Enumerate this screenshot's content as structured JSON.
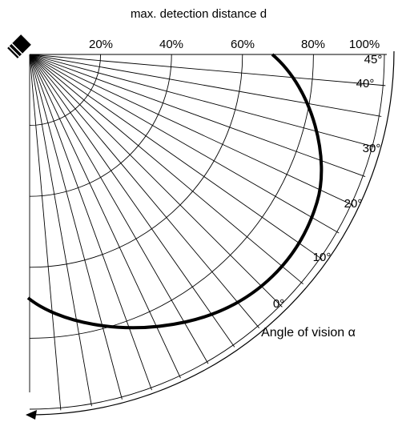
{
  "title": "max. detection distance d",
  "distance_labels": [
    "20%",
    "40%",
    "60%",
    "80%",
    "100%"
  ],
  "angle_labels": [
    "45°",
    "40°",
    "30°",
    "20°",
    "10°",
    "0°"
  ],
  "vision_label": "Angle of vision α"
}
